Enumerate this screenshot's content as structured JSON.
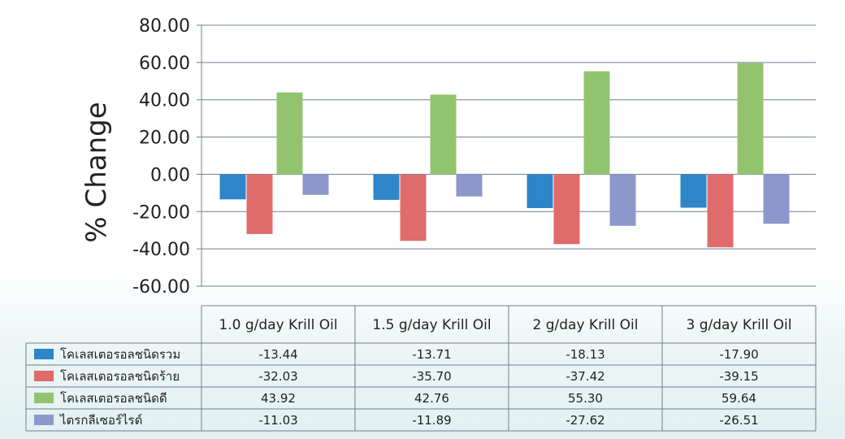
{
  "chart_data": {
    "type": "bar",
    "ylabel": "% Change",
    "ylim": [
      -60,
      80
    ],
    "yticks": [
      "80.00",
      "60.00",
      "40.00",
      "20.00",
      "0.00",
      "-20.00",
      "-40.00",
      "-60.00"
    ],
    "grid": true,
    "legend_placement": "data-table-left",
    "categories": [
      "1.0 g/day Krill Oil",
      "1.5 g/day Krill Oil",
      "2 g/day Krill Oil",
      "3 g/day Krill Oil"
    ],
    "series": [
      {
        "name": "โคเลสเตอรอลชนิดรวม",
        "color": "#2e86c8",
        "values": [
          -13.44,
          -13.71,
          -18.13,
          -17.9
        ],
        "labels": [
          "-13.44",
          "-13.71",
          "-18.13",
          "-17.90"
        ]
      },
      {
        "name": "โคเลสเตอรอลชนิดร้าย",
        "color": "#e06b6b",
        "values": [
          -32.03,
          -35.7,
          -37.42,
          -39.15
        ],
        "labels": [
          "-32.03",
          "-35.70",
          "-37.42",
          "-39.15"
        ]
      },
      {
        "name": "โคเลสเตอรอลชนิดดี",
        "color": "#92c46f",
        "values": [
          43.92,
          42.76,
          55.3,
          59.64
        ],
        "labels": [
          "43.92",
          "42.76",
          "55.30",
          "59.64"
        ]
      },
      {
        "name": "ไตรกลีเซอร์ไรด์",
        "color": "#8c98cc",
        "values": [
          -11.03,
          -11.89,
          -27.62,
          -26.51
        ],
        "labels": [
          "-11.03",
          "-11.89",
          "-27.62",
          "-26.51"
        ]
      }
    ]
  }
}
